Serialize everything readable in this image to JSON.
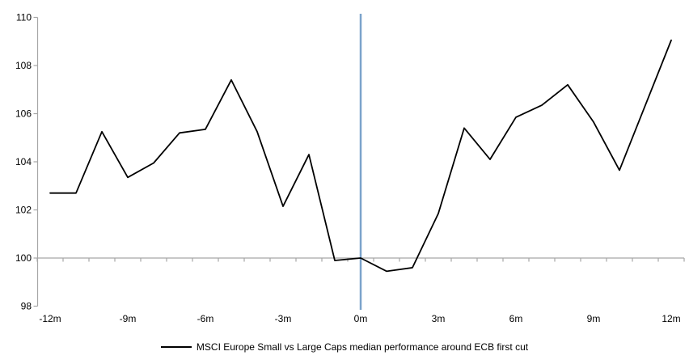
{
  "chart_data": {
    "type": "line",
    "title": "",
    "x": [
      -12,
      -11,
      -10,
      -9,
      -8,
      -7,
      -6,
      -5,
      -4,
      -3,
      -2,
      -1,
      0,
      1,
      2,
      3,
      4,
      5,
      6,
      7,
      8,
      9,
      10,
      11,
      12
    ],
    "series": [
      {
        "name": "MSCI Europe Small vs Large Caps median performance around ECB first cut",
        "color": "#000000",
        "values": [
          102.7,
          102.7,
          105.25,
          103.35,
          103.95,
          105.2,
          105.35,
          107.4,
          105.25,
          102.15,
          104.3,
          99.9,
          100.0,
          99.45,
          99.6,
          101.85,
          105.4,
          104.1,
          105.85,
          106.35,
          107.2,
          105.65,
          103.65,
          106.35,
          109.05
        ]
      }
    ],
    "ylim": [
      98,
      110
    ],
    "yticks": [
      110,
      108,
      106,
      104,
      102,
      100,
      98
    ],
    "xticks": [
      {
        "value": -12,
        "label": "-12m"
      },
      {
        "value": -9,
        "label": "-9m"
      },
      {
        "value": -6,
        "label": "-6m"
      },
      {
        "value": -3,
        "label": "-3m"
      },
      {
        "value": 0,
        "label": "0m"
      },
      {
        "value": 3,
        "label": "3m"
      },
      {
        "value": 6,
        "label": "6m"
      },
      {
        "value": 9,
        "label": "9m"
      },
      {
        "value": 12,
        "label": "12m"
      }
    ],
    "minor_xtick_every": 1,
    "baseline": 100,
    "event_line": {
      "x": 0,
      "color": "#7ba3cb"
    },
    "axis_color": "#a6a6a6",
    "grid": "off",
    "legend_position": "bottom-center"
  }
}
